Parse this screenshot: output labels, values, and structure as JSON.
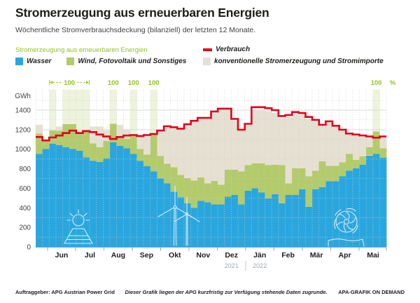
{
  "header": {
    "title": "Stromerzeugung aus erneuerbaren Energien",
    "subtitle": "Wöchentliche Stromverbrauchsdeckung (bilanziell) der letzten 12 Monate."
  },
  "legend": {
    "renewables_heading": "Stromerzeugung aus erneuerbaren Energien",
    "items": [
      {
        "label": "Wasser",
        "color": "#2aa6df"
      },
      {
        "label": "Wind, Fotovoltaik und Sonstiges",
        "color": "#b3cb6b"
      }
    ],
    "consumption": {
      "label": "Verbrauch",
      "color": "#e2001a"
    },
    "conventional": {
      "label": "konventionelle Stromerzeugung und Stromimporte",
      "color": "#e6e0d3"
    }
  },
  "footer": {
    "client": "Auftraggeber: APG Austrian Power Grid",
    "note": "Dieser Grafik liegen der APG kurzfristig zur Verfügung stehende Daten zugrunde.",
    "brand": "APA-GRAFIK ON DEMAND"
  },
  "chart_data": {
    "type": "bar",
    "subtype": "stacked-weekly-bars-with-step-line",
    "unit_label": "GWh",
    "percent_label": "%",
    "hundred_label": "100",
    "ylim": [
      0,
      1400
    ],
    "ytick_step": 200,
    "yticks": [
      0,
      200,
      400,
      600,
      800,
      1000,
      1200,
      1400
    ],
    "grid": "dotted-minor-and-solid-major",
    "months": [
      "Jun",
      "Jul",
      "Aug",
      "Sep",
      "Okt",
      "Nov",
      "Dez",
      "Jän",
      "Feb",
      "Mär",
      "Apr",
      "Mai"
    ],
    "years": [
      {
        "label": "2021",
        "month_index": 6
      },
      {
        "label": "2022",
        "month_index": 7
      }
    ],
    "weeks": 52,
    "series": [
      {
        "name": "Wasser",
        "color": "#2aa6df",
        "values": [
          950,
          1000,
          1055,
          1040,
          1020,
          1000,
          985,
          915,
          880,
          870,
          905,
          1070,
          1035,
          1010,
          950,
          880,
          825,
          770,
          700,
          650,
          565,
          505,
          445,
          400,
          470,
          455,
          435,
          435,
          515,
          530,
          435,
          575,
          600,
          555,
          495,
          540,
          445,
          530,
          530,
          590,
          410,
          590,
          610,
          670,
          670,
          720,
          780,
          805,
          840,
          935,
          950,
          910
        ]
      },
      {
        "name": "Wind, Fotovoltaik und Sonstiges",
        "color": "#b3cb6b",
        "values": [
          210,
          80,
          135,
          150,
          235,
          255,
          185,
          275,
          180,
          150,
          180,
          190,
          80,
          95,
          200,
          120,
          120,
          390,
          230,
          200,
          250,
          230,
          260,
          280,
          240,
          195,
          240,
          200,
          275,
          260,
          335,
          260,
          255,
          300,
          340,
          300,
          390,
          120,
          275,
          215,
          310,
          190,
          265,
          160,
          160,
          145,
          170,
          85,
          85,
          85,
          230,
          100
        ]
      },
      {
        "name": "konventionelle Stromerzeugung und Stromimporte",
        "color": "#e6e0d3",
        "values": [
          90,
          0,
          0,
          40,
          0,
          0,
          0,
          0,
          170,
          210,
          105,
          0,
          135,
          90,
          0,
          140,
          200,
          0,
          245,
          370,
          395,
          460,
          535,
          595,
          595,
          655,
          690,
          765,
          610,
          505,
          415,
          410,
          545,
          545,
          555,
          530,
          480,
          680,
          550,
          545,
          585,
          500,
          360,
          440,
          395,
          320,
          195,
          245,
          200,
          95,
          0,
          105
        ]
      }
    ],
    "line": {
      "name": "Verbrauch",
      "color": "#e2001a",
      "values": [
        1125,
        1090,
        1120,
        1140,
        1165,
        1190,
        1165,
        1185,
        1175,
        1150,
        1130,
        1105,
        1125,
        1140,
        1145,
        1135,
        1145,
        1155,
        1190,
        1235,
        1225,
        1210,
        1255,
        1290,
        1320,
        1320,
        1385,
        1415,
        1415,
        1310,
        1200,
        1260,
        1430,
        1430,
        1420,
        1400,
        1340,
        1350,
        1380,
        1370,
        1330,
        1300,
        1250,
        1285,
        1240,
        1200,
        1160,
        1150,
        1140,
        1130,
        1118,
        1130
      ]
    },
    "full_coverage_weeks": [
      3,
      5,
      6,
      7,
      8,
      12,
      15,
      18,
      51
    ],
    "bracket": {
      "from_week": 3,
      "to_week": 8,
      "label": "100"
    },
    "highlight_band_color": "#edf3dc",
    "annotation_color": "#95c11f"
  }
}
